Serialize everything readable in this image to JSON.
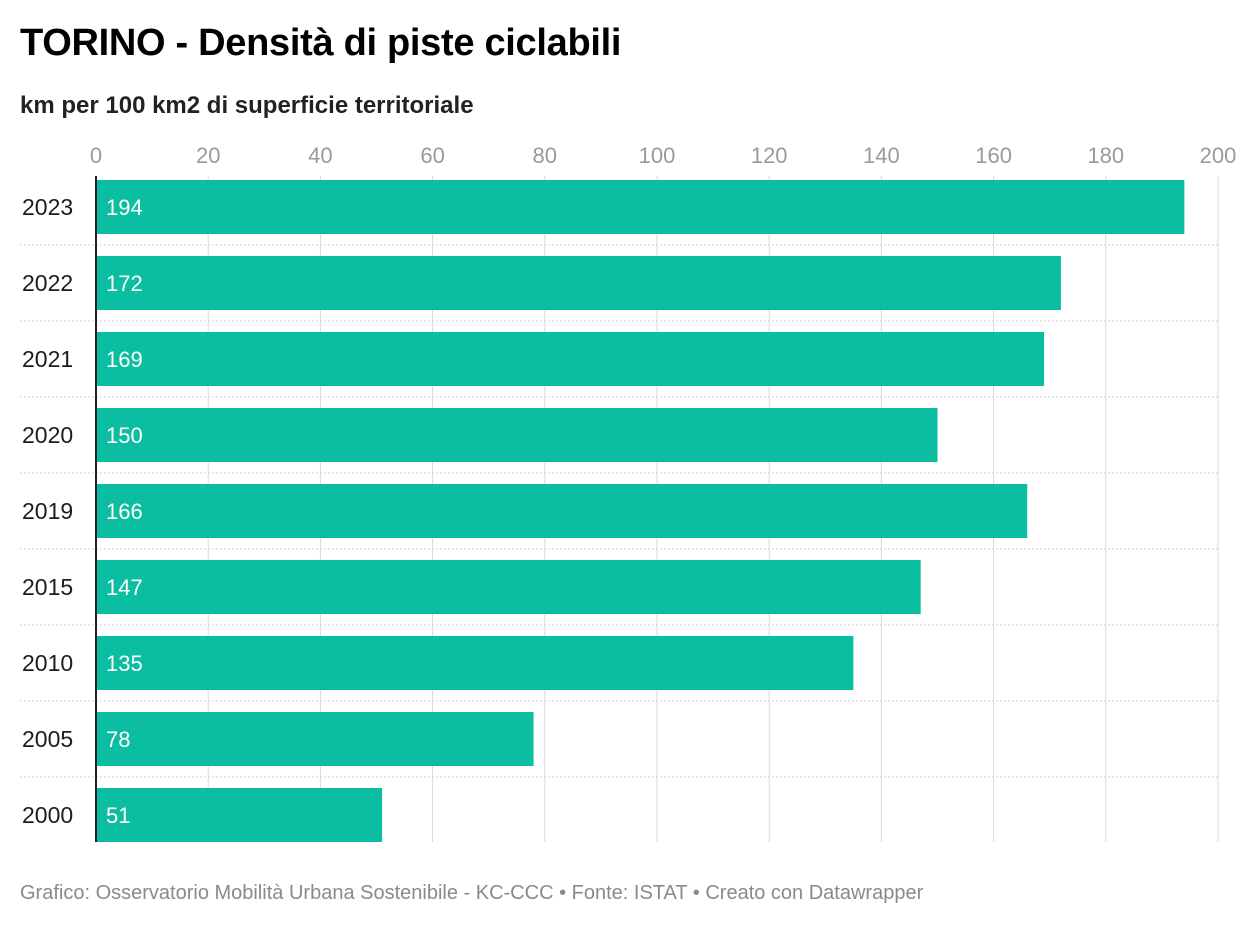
{
  "title": "TORINO - Densità di piste ciclabili",
  "subtitle": "km per 100 km2 di superficie territoriale",
  "footer": "Grafico: Osservatorio Mobilità Urbana Sostenibile - KC-CCC • Fonte: ISTAT • Creato con Datawrapper",
  "colors": {
    "bar": "#0bbda1",
    "grid": "#d9d9d9",
    "tick": "#9a9a9a",
    "label": "#1d1d1d",
    "value_label": "#ffffff"
  },
  "chart_data": {
    "type": "bar",
    "orientation": "horizontal",
    "categories": [
      "2023",
      "2022",
      "2021",
      "2020",
      "2019",
      "2015",
      "2010",
      "2005",
      "2000"
    ],
    "values": [
      194,
      172,
      169,
      150,
      166,
      147,
      135,
      78,
      51
    ],
    "xlim": [
      0,
      200
    ],
    "xticks": [
      "0",
      "20",
      "40",
      "60",
      "80",
      "100",
      "120",
      "140",
      "160",
      "180",
      "200"
    ],
    "grid": true,
    "title": "TORINO - Densità di piste ciclabili",
    "subtitle": "km per 100 km2 di superficie territoriale"
  }
}
